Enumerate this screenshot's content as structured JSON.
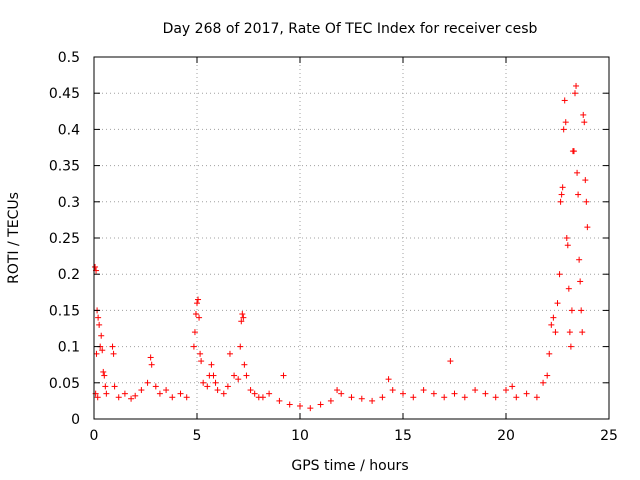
{
  "chart_data": {
    "type": "scatter",
    "title": "Day 268 of 2017, Rate Of TEC Index for receiver cesb",
    "xlabel": "GPS time / hours",
    "ylabel": "ROTI / TECUs",
    "xlim": [
      0,
      25
    ],
    "ylim": [
      0,
      0.5
    ],
    "x_ticks": [
      0,
      5,
      10,
      15,
      20,
      25
    ],
    "y_ticks": [
      0,
      0.05,
      0.1,
      0.15,
      0.2,
      0.25,
      0.3,
      0.35,
      0.4,
      0.45,
      0.5
    ],
    "grid": true,
    "marker": "+",
    "color": "#ff0000",
    "series": [
      {
        "values_note_points": [
          [
            0.05,
            0.21
          ],
          [
            0.1,
            0.205
          ],
          [
            0.12,
            0.09
          ],
          [
            0.15,
            0.15
          ],
          [
            0.2,
            0.14
          ],
          [
            0.25,
            0.13
          ],
          [
            0.3,
            0.1
          ],
          [
            0.35,
            0.115
          ],
          [
            0.4,
            0.095
          ],
          [
            0.45,
            0.065
          ],
          [
            0.5,
            0.06
          ],
          [
            0.55,
            0.045
          ],
          [
            0.6,
            0.035
          ],
          [
            0.08,
            0.035
          ],
          [
            0.18,
            0.03
          ],
          [
            0.9,
            0.1
          ],
          [
            0.95,
            0.09
          ],
          [
            1.0,
            0.045
          ],
          [
            1.2,
            0.03
          ],
          [
            1.5,
            0.035
          ],
          [
            1.8,
            0.028
          ],
          [
            2.0,
            0.032
          ],
          [
            2.3,
            0.04
          ],
          [
            2.6,
            0.05
          ],
          [
            2.75,
            0.085
          ],
          [
            2.8,
            0.075
          ],
          [
            3.0,
            0.045
          ],
          [
            3.2,
            0.035
          ],
          [
            3.5,
            0.04
          ],
          [
            3.8,
            0.03
          ],
          [
            4.2,
            0.035
          ],
          [
            4.5,
            0.03
          ],
          [
            4.85,
            0.1
          ],
          [
            4.9,
            0.12
          ],
          [
            4.95,
            0.145
          ],
          [
            5.0,
            0.16
          ],
          [
            5.05,
            0.165
          ],
          [
            5.1,
            0.14
          ],
          [
            5.15,
            0.09
          ],
          [
            5.2,
            0.08
          ],
          [
            5.3,
            0.05
          ],
          [
            5.5,
            0.045
          ],
          [
            5.6,
            0.06
          ],
          [
            5.7,
            0.075
          ],
          [
            5.8,
            0.06
          ],
          [
            5.9,
            0.05
          ],
          [
            6.0,
            0.04
          ],
          [
            6.3,
            0.035
          ],
          [
            6.5,
            0.045
          ],
          [
            6.6,
            0.09
          ],
          [
            6.8,
            0.06
          ],
          [
            7.0,
            0.055
          ],
          [
            7.1,
            0.1
          ],
          [
            7.15,
            0.135
          ],
          [
            7.2,
            0.145
          ],
          [
            7.25,
            0.14
          ],
          [
            7.3,
            0.075
          ],
          [
            7.4,
            0.06
          ],
          [
            7.6,
            0.04
          ],
          [
            7.8,
            0.035
          ],
          [
            8.0,
            0.03
          ],
          [
            8.2,
            0.03
          ],
          [
            8.5,
            0.035
          ],
          [
            9.0,
            0.025
          ],
          [
            9.2,
            0.06
          ],
          [
            9.5,
            0.02
          ],
          [
            10.0,
            0.018
          ],
          [
            10.5,
            0.015
          ],
          [
            11.0,
            0.02
          ],
          [
            11.5,
            0.025
          ],
          [
            11.8,
            0.04
          ],
          [
            12.0,
            0.035
          ],
          [
            12.5,
            0.03
          ],
          [
            13.0,
            0.028
          ],
          [
            13.5,
            0.025
          ],
          [
            14.0,
            0.03
          ],
          [
            14.3,
            0.055
          ],
          [
            14.5,
            0.04
          ],
          [
            15.0,
            0.035
          ],
          [
            15.5,
            0.03
          ],
          [
            16.0,
            0.04
          ],
          [
            16.5,
            0.035
          ],
          [
            17.0,
            0.03
          ],
          [
            17.3,
            0.08
          ],
          [
            17.5,
            0.035
          ],
          [
            18.0,
            0.03
          ],
          [
            18.5,
            0.04
          ],
          [
            19.0,
            0.035
          ],
          [
            19.5,
            0.03
          ],
          [
            20.0,
            0.04
          ],
          [
            20.3,
            0.045
          ],
          [
            20.5,
            0.03
          ],
          [
            21.0,
            0.035
          ],
          [
            21.5,
            0.03
          ],
          [
            21.8,
            0.05
          ],
          [
            22.0,
            0.06
          ],
          [
            22.1,
            0.09
          ],
          [
            22.2,
            0.13
          ],
          [
            22.3,
            0.14
          ],
          [
            22.4,
            0.12
          ],
          [
            22.5,
            0.16
          ],
          [
            22.6,
            0.2
          ],
          [
            22.65,
            0.3
          ],
          [
            22.7,
            0.31
          ],
          [
            22.75,
            0.32
          ],
          [
            22.8,
            0.4
          ],
          [
            22.85,
            0.44
          ],
          [
            22.9,
            0.41
          ],
          [
            22.95,
            0.25
          ],
          [
            23.0,
            0.24
          ],
          [
            23.05,
            0.18
          ],
          [
            23.1,
            0.12
          ],
          [
            23.15,
            0.1
          ],
          [
            23.2,
            0.15
          ],
          [
            23.25,
            0.37
          ],
          [
            23.3,
            0.37
          ],
          [
            23.35,
            0.45
          ],
          [
            23.4,
            0.46
          ],
          [
            23.45,
            0.34
          ],
          [
            23.5,
            0.31
          ],
          [
            23.55,
            0.22
          ],
          [
            23.6,
            0.19
          ],
          [
            23.65,
            0.15
          ],
          [
            23.7,
            0.12
          ],
          [
            23.75,
            0.42
          ],
          [
            23.8,
            0.41
          ],
          [
            23.85,
            0.33
          ],
          [
            23.9,
            0.3
          ],
          [
            23.95,
            0.265
          ]
        ]
      }
    ]
  }
}
